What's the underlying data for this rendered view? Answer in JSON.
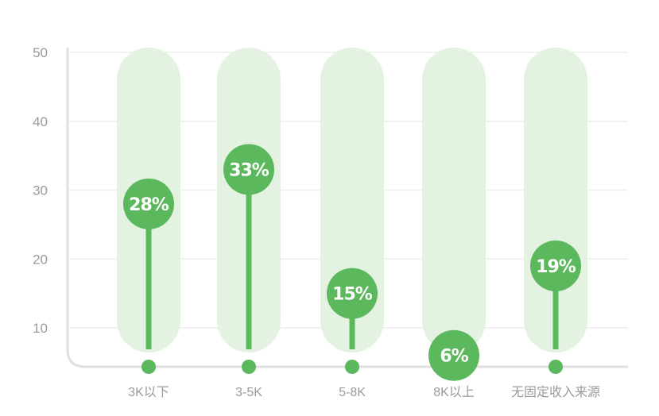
{
  "chart_data": {
    "type": "lollipop",
    "categories": [
      "3K以下",
      "3-5K",
      "5-8K",
      "8K以上",
      "无固定收入来源"
    ],
    "values": [
      28,
      33,
      15,
      6,
      19
    ],
    "value_labels": [
      "28%",
      "33%",
      "15%",
      "6%",
      "19%"
    ],
    "yticks": [
      10,
      20,
      30,
      40,
      50
    ],
    "ylim": [
      5,
      50
    ],
    "grid": true,
    "colors": {
      "accent": "#5cb85c",
      "background_pill": "#e3f2e1",
      "axis": "#e0e0e0",
      "grid": "#eeeeee",
      "tick_text": "#9a9a9a"
    }
  }
}
